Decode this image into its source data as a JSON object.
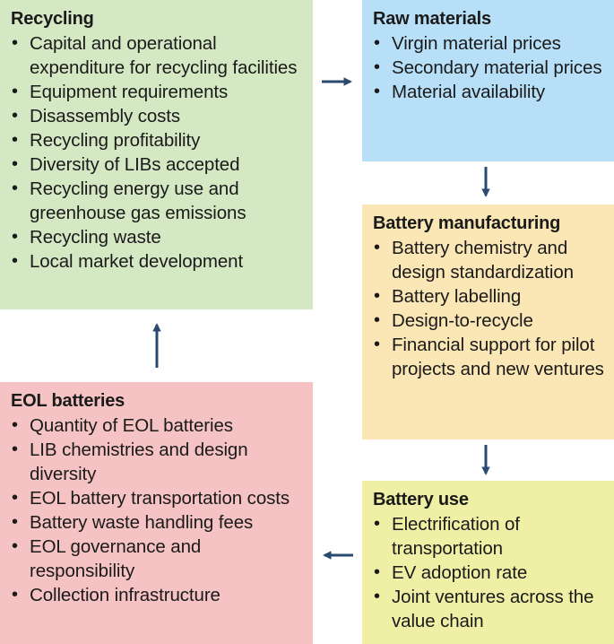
{
  "boxes": {
    "recycling": {
      "title": "Recycling",
      "color": "#d5e8c4",
      "items": [
        "Capital and operational expenditure for recycling facilities",
        "Equipment requirements",
        "Disassembly costs",
        "Recycling profitability",
        "Diversity of LIBs accepted",
        "Recycling energy use and greenhouse gas emissions",
        "Recycling waste",
        "Local market development"
      ]
    },
    "raw_materials": {
      "title": "Raw materials",
      "color": "#b7dff7",
      "items": [
        "Virgin material prices",
        "Secondary material prices",
        "Material availability"
      ]
    },
    "battery_manufacturing": {
      "title": "Battery manufacturing",
      "color": "#fbe7b6",
      "items": [
        "Battery chemistry and design standardization",
        "Battery labelling",
        "Design-to-recycle",
        "Financial support for pilot projects and new ventures"
      ]
    },
    "battery_use": {
      "title": "Battery use",
      "color": "#eff0a6",
      "items": [
        "Electrification of transportation",
        "EV adoption rate",
        "Joint ventures across the value chain"
      ]
    },
    "eol_batteries": {
      "title": "EOL batteries",
      "color": "#f5c3c3",
      "items": [
        "Quantity of EOL batteries",
        "LIB chemistries and design diversity",
        "EOL battery transportation costs",
        "Battery waste handling fees",
        "EOL governance and responsibility",
        "Collection infrastructure"
      ]
    }
  },
  "arrow_color": "#2b4a6f"
}
